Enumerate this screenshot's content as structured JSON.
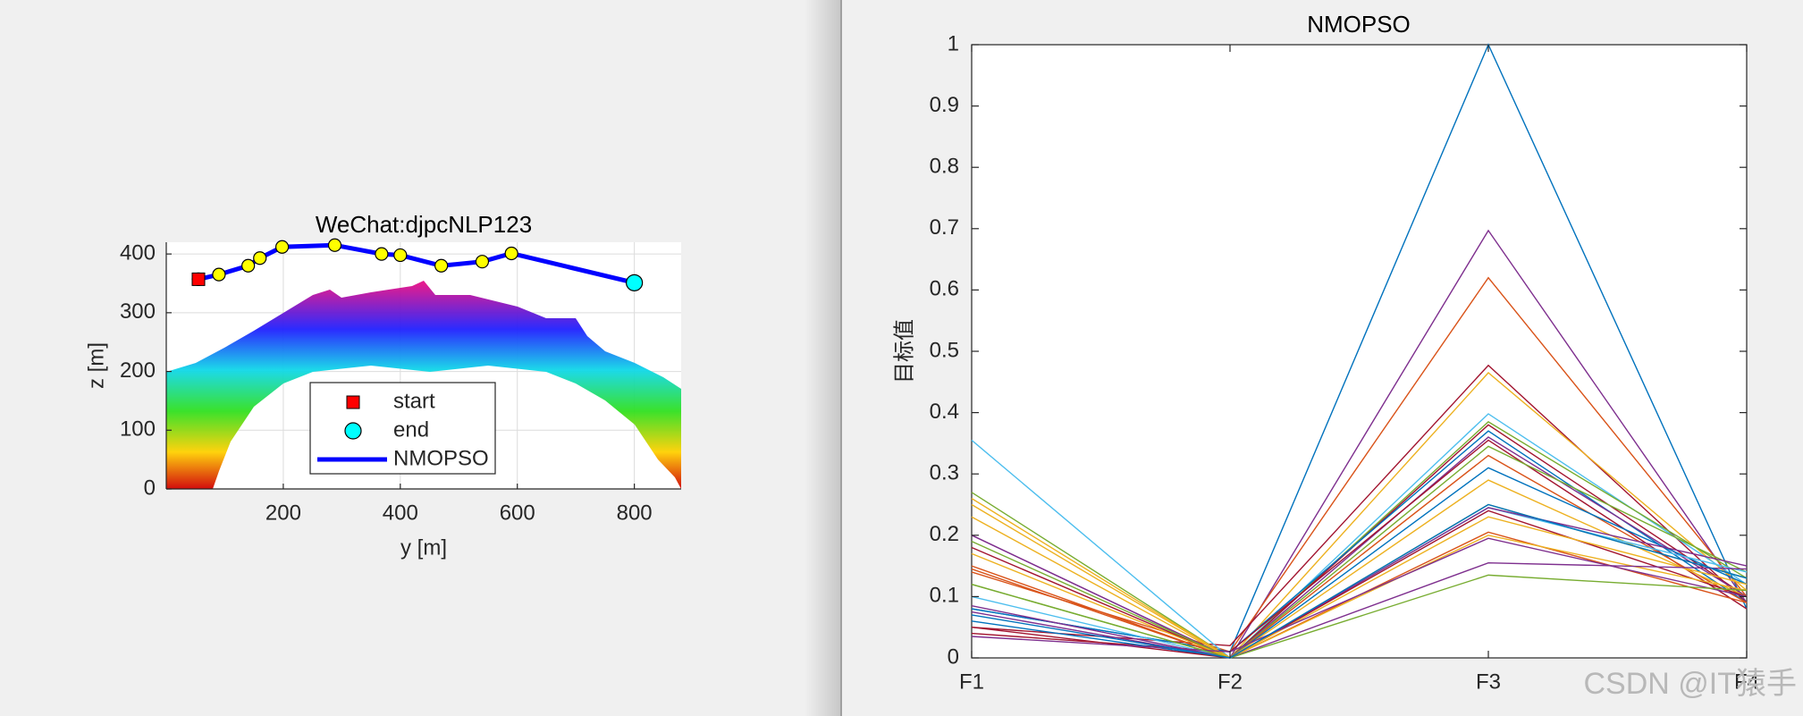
{
  "chart_data": [
    {
      "type": "line",
      "title": "WeChat:djpcNLP123",
      "x_label": "y [m]",
      "y_label": "z [m]",
      "xlim": [
        0,
        880
      ],
      "xticks": [
        200,
        400,
        600,
        800
      ],
      "ylim": [
        0,
        420
      ],
      "yticks": [
        0,
        100,
        200,
        300,
        400
      ],
      "grid": true,
      "legend": "south",
      "series": [
        {
          "name": "start",
          "color": "#ff0000",
          "marker": "square",
          "x": [
            55
          ],
          "values": [
            357
          ]
        },
        {
          "name": "end",
          "color": "#00ffff",
          "marker": "circle",
          "x": [
            800
          ],
          "values": [
            351
          ]
        },
        {
          "name": "NMOPSO",
          "color": "#0000ff",
          "marker_color": "#ffff00",
          "x": [
            55,
            90,
            140,
            160,
            198,
            288,
            368,
            400,
            470,
            540,
            590,
            800
          ],
          "values": [
            357,
            365,
            380,
            393,
            412,
            415,
            400,
            398,
            380,
            387,
            401,
            351
          ]
        }
      ]
    },
    {
      "type": "parallel",
      "title": "NMOPSO",
      "y_label": "目标值",
      "categories": [
        "F1",
        "F2",
        "F3",
        "F4"
      ],
      "ylim": [
        0,
        1
      ],
      "yticks": [
        0,
        0.1,
        0.2,
        0.3,
        0.4,
        0.5,
        0.6,
        0.7,
        0.8,
        0.9,
        1
      ],
      "series": [
        {
          "color": "#0072BD",
          "values": [
            0.08,
            0.01,
            1.0,
            0.08
          ]
        },
        {
          "color": "#7E2F8E",
          "values": [
            0.2,
            0.0,
            0.697,
            0.09
          ]
        },
        {
          "color": "#D95319",
          "values": [
            0.14,
            0.01,
            0.62,
            0.1
          ]
        },
        {
          "color": "#A2142F",
          "values": [
            0.05,
            0.02,
            0.477,
            0.09
          ]
        },
        {
          "color": "#EDB120",
          "values": [
            0.25,
            0.0,
            0.465,
            0.11
          ]
        },
        {
          "color": "#4DBEEE",
          "values": [
            0.355,
            0.0,
            0.398,
            0.12
          ]
        },
        {
          "color": "#77AC30",
          "values": [
            0.27,
            0.0,
            0.385,
            0.13
          ]
        },
        {
          "color": "#A2142F",
          "values": [
            0.18,
            0.0,
            0.38,
            0.1
          ]
        },
        {
          "color": "#0072BD",
          "values": [
            0.08,
            0.01,
            0.37,
            0.09
          ]
        },
        {
          "color": "#7E2F8E",
          "values": [
            0.2,
            0.0,
            0.36,
            0.1
          ]
        },
        {
          "color": "#A2142F",
          "values": [
            0.04,
            0.01,
            0.355,
            0.08
          ]
        },
        {
          "color": "#77AC30",
          "values": [
            0.12,
            0.0,
            0.345,
            0.14
          ]
        },
        {
          "color": "#D95319",
          "values": [
            0.15,
            0.0,
            0.33,
            0.09
          ]
        },
        {
          "color": "#0072BD",
          "values": [
            0.06,
            0.0,
            0.31,
            0.12
          ]
        },
        {
          "color": "#EDB120",
          "values": [
            0.23,
            0.0,
            0.29,
            0.1
          ]
        },
        {
          "color": "#77AC30",
          "values": [
            0.19,
            0.0,
            0.25,
            0.13
          ]
        },
        {
          "color": "#4DBEEE",
          "values": [
            0.1,
            0.0,
            0.245,
            0.14
          ]
        },
        {
          "color": "#7E2F8E",
          "values": [
            0.085,
            0.0,
            0.245,
            0.15
          ]
        },
        {
          "color": "#A2142F",
          "values": [
            0.05,
            0.0,
            0.24,
            0.1
          ]
        },
        {
          "color": "#EDB120",
          "values": [
            0.26,
            0.0,
            0.23,
            0.12
          ]
        },
        {
          "color": "#D95319",
          "values": [
            0.145,
            0.0,
            0.205,
            0.09
          ]
        },
        {
          "color": "#EDB120",
          "values": [
            0.17,
            0.0,
            0.2,
            0.11
          ]
        },
        {
          "color": "#7E2F8E",
          "values": [
            0.035,
            0.01,
            0.195,
            0.1
          ]
        },
        {
          "color": "#7E2F8E",
          "values": [
            0.075,
            0.0,
            0.155,
            0.145
          ]
        },
        {
          "color": "#77AC30",
          "values": [
            0.12,
            0.0,
            0.135,
            0.11
          ]
        },
        {
          "color": "#0072BD",
          "values": [
            0.07,
            0.0,
            0.25,
            0.13
          ]
        }
      ]
    }
  ],
  "watermark": "CSDN @IT猿手"
}
